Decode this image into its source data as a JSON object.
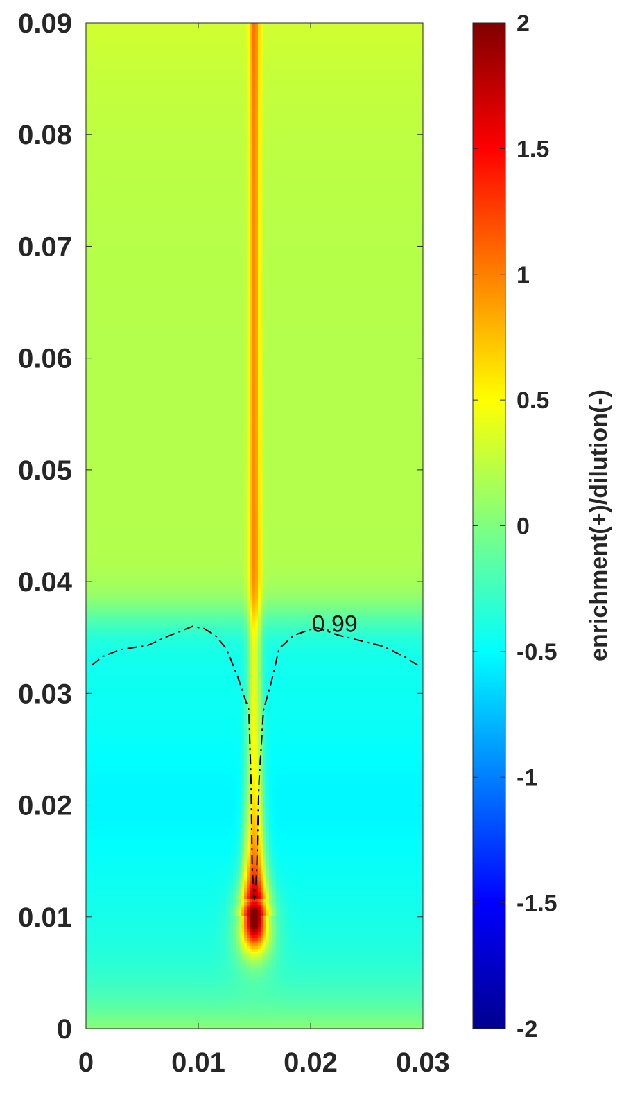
{
  "chart_data": {
    "type": "heatmap",
    "title": "",
    "xlabel": "",
    "ylabel": "",
    "xlim": [
      0,
      0.03
    ],
    "ylim": [
      0,
      0.09
    ],
    "x_ticks": [
      0,
      0.01,
      0.02,
      0.03
    ],
    "x_tick_labels": [
      "0",
      "0.01",
      "0.02",
      "0.03"
    ],
    "y_ticks": [
      0,
      0.01,
      0.02,
      0.03,
      0.04,
      0.05,
      0.06,
      0.07,
      0.08,
      0.09
    ],
    "y_tick_labels": [
      "0",
      "0.01",
      "0.02",
      "0.03",
      "0.04",
      "0.05",
      "0.06",
      "0.07",
      "0.08",
      "0.09"
    ],
    "grid": false,
    "colormap": "jet",
    "colorbar": {
      "label": "enrichment(+)/dilution(-)",
      "clim": [
        -2,
        2
      ],
      "ticks": [
        -2,
        -1.5,
        -1,
        -0.5,
        0,
        0.5,
        1,
        1.5,
        2
      ],
      "tick_labels": [
        "-2",
        "-1.5",
        "-1",
        "-0.5",
        "0",
        "0.5",
        "1",
        "1.5",
        "2"
      ],
      "placement": "right"
    },
    "field_values": {
      "upper_region_above_y_0.037": 0.2,
      "lower_region_below_y_0.037": -0.45,
      "bottom_edge": 0.05,
      "center_plume_x": 0.015,
      "plume_peak": 1.95,
      "plume_peak_y": 0.01
    },
    "contour": {
      "level_label": "0.99",
      "style": "dash-dot",
      "color": "#000000",
      "points": [
        [
          0.0005,
          0.0325
        ],
        [
          0.0015,
          0.0333
        ],
        [
          0.003,
          0.0339
        ],
        [
          0.0055,
          0.0343
        ],
        [
          0.0075,
          0.0352
        ],
        [
          0.0095,
          0.036
        ],
        [
          0.0105,
          0.0358
        ],
        [
          0.0115,
          0.0352
        ],
        [
          0.0125,
          0.034
        ],
        [
          0.0135,
          0.0315
        ],
        [
          0.0145,
          0.0285
        ],
        [
          0.0147,
          0.022
        ],
        [
          0.0148,
          0.014
        ],
        [
          0.015,
          0.0115
        ],
        [
          0.0152,
          0.014
        ],
        [
          0.0154,
          0.022
        ],
        [
          0.0158,
          0.0285
        ],
        [
          0.0165,
          0.031
        ],
        [
          0.0172,
          0.034
        ],
        [
          0.0185,
          0.0352
        ],
        [
          0.0205,
          0.0359
        ],
        [
          0.0225,
          0.0352
        ],
        [
          0.0245,
          0.0347
        ],
        [
          0.0265,
          0.0342
        ],
        [
          0.0285,
          0.0332
        ],
        [
          0.0297,
          0.0324
        ]
      ],
      "label_position": [
        0.0201,
        0.0355
      ]
    }
  }
}
